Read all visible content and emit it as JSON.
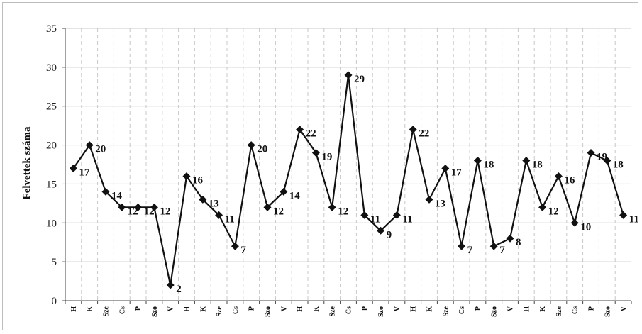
{
  "chart_data": {
    "type": "line",
    "title": "",
    "xlabel": "",
    "ylabel": "Felvettek száma",
    "ylim": [
      0,
      35
    ],
    "yticks": [
      0,
      5,
      10,
      15,
      20,
      25,
      30,
      35
    ],
    "grid": "horizontal solid, vertical dashed",
    "legend": "none",
    "categories": [
      "H",
      "K",
      "Sze",
      "Cs",
      "P",
      "Szo",
      "V",
      "H",
      "K",
      "Sze",
      "Cs",
      "P",
      "Szo",
      "V",
      "H",
      "K",
      "Sze",
      "Cs",
      "P",
      "Szo",
      "V",
      "H",
      "K",
      "Sze",
      "Cs",
      "P",
      "Szo",
      "V",
      "H",
      "K",
      "Sze",
      "Cs",
      "P",
      "Szo",
      "V"
    ],
    "values": [
      17,
      20,
      14,
      12,
      12,
      12,
      2,
      16,
      13,
      11,
      7,
      20,
      12,
      14,
      22,
      19,
      12,
      29,
      11,
      9,
      11,
      22,
      13,
      17,
      7,
      18,
      7,
      8,
      18,
      12,
      16,
      10,
      19,
      18,
      11
    ],
    "data_labels": [
      "17",
      "20",
      "14",
      "12",
      "12",
      "12",
      "2",
      "16",
      "13",
      "11",
      "7",
      "20",
      "12",
      "14",
      "22",
      "19",
      "12",
      "29",
      "11",
      "9",
      "11",
      "22",
      "13",
      "17",
      "7",
      "18",
      "7",
      "8",
      "18",
      "12",
      "16",
      "10",
      "19",
      "18",
      "11"
    ],
    "colors": {
      "line": "#111111",
      "marker": "#111111",
      "grid": "#c8c8c8"
    }
  }
}
